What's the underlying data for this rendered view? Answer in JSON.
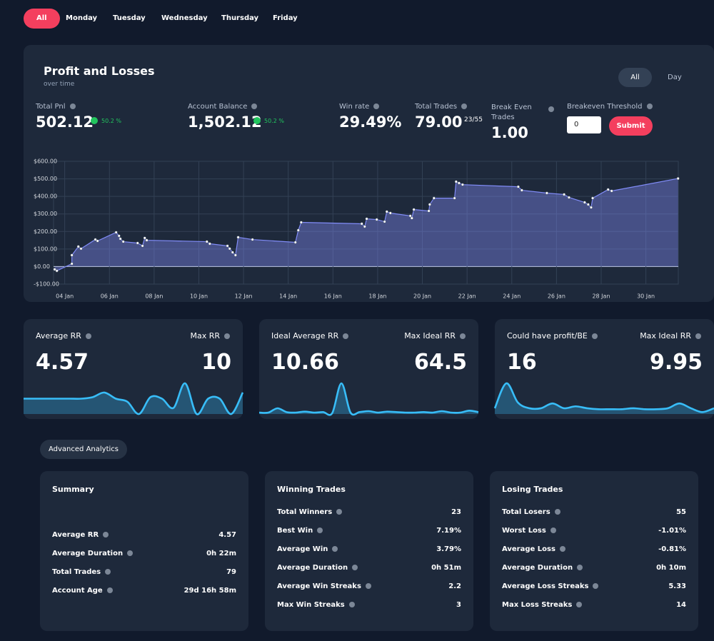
{
  "tabs": [
    "All",
    "Monday",
    "Tuesday",
    "Wednesday",
    "Thursday",
    "Friday"
  ],
  "panel": {
    "title": "Profit and Losses",
    "subtitle": "over time",
    "toggle": [
      "All",
      "Day"
    ],
    "stats": [
      {
        "label": "Total Pnl",
        "value": "502.12",
        "badge": "50.2 %"
      },
      {
        "label": "Account Balance",
        "value": "1,502.12",
        "badge": "50.2 %"
      },
      {
        "label": "Win rate",
        "value": "29.49%"
      },
      {
        "label": "Total Trades",
        "value": "79.00",
        "sub": "23/55"
      },
      {
        "label": "Break Even Trades",
        "value": "1.00"
      }
    ],
    "threshold": {
      "label": "Breakeven Threshold",
      "input": "0",
      "button": "Submit"
    }
  },
  "chart_data": {
    "type": "area",
    "x": [
      3.55,
      3.65,
      4.32,
      4.32,
      4.61,
      4.73,
      5.37,
      5.47,
      6.3,
      6.43,
      6.49,
      6.62,
      7.26,
      7.48,
      7.58,
      7.67,
      10.36,
      10.49,
      11.28,
      11.38,
      11.51,
      11.64,
      11.76,
      12.4,
      14.32,
      14.45,
      14.58,
      17.29,
      17.42,
      17.51,
      17.96,
      18.31,
      18.41,
      18.57,
      19.46,
      19.53,
      19.62,
      20.29,
      20.33,
      20.52,
      21.44,
      21.51,
      21.64,
      21.8,
      24.29,
      24.45,
      25.57,
      26.34,
      26.56,
      27.26,
      27.42,
      27.55,
      27.62,
      28.31,
      28.47,
      31.44
    ],
    "values": [
      -16,
      -24,
      16,
      65,
      114,
      102,
      154,
      146,
      195,
      175,
      158,
      142,
      134,
      118,
      163,
      150,
      142,
      130,
      118,
      102,
      81,
      65,
      167,
      154,
      138,
      207,
      252,
      244,
      228,
      272,
      268,
      256,
      313,
      305,
      289,
      276,
      325,
      317,
      354,
      390,
      390,
      484,
      476,
      467,
      455,
      435,
      419,
      411,
      394,
      366,
      354,
      337,
      390,
      439,
      431,
      502
    ],
    "color": "#818cf8",
    "xlim": [
      3.5,
      31.45
    ],
    "ylim": [
      -100,
      600
    ],
    "xticks": [
      {
        "value": 4,
        "label": "04 Jan"
      },
      {
        "value": 6,
        "label": "06 Jan"
      },
      {
        "value": 8,
        "label": "08 Jan"
      },
      {
        "value": 10,
        "label": "10 Jan"
      },
      {
        "value": 12,
        "label": "12 Jan"
      },
      {
        "value": 14,
        "label": "14 Jan"
      },
      {
        "value": 16,
        "label": "16 Jan"
      },
      {
        "value": 18,
        "label": "18 Jan"
      },
      {
        "value": 20,
        "label": "20 Jan"
      },
      {
        "value": 22,
        "label": "22 Jan"
      },
      {
        "value": 24,
        "label": "24 Jan"
      },
      {
        "value": 26,
        "label": "26 Jan"
      },
      {
        "value": 28,
        "label": "28 Jan"
      },
      {
        "value": 30,
        "label": "30 Jan"
      }
    ],
    "yticks": [
      {
        "value": 600,
        "label": "$600.00"
      },
      {
        "value": 500,
        "label": "$500.00"
      },
      {
        "value": 400,
        "label": "$400.00"
      },
      {
        "value": 300,
        "label": "$300.00"
      },
      {
        "value": 200,
        "label": "$200.00"
      },
      {
        "value": 100,
        "label": "$100.00"
      },
      {
        "value": 0,
        "label": "$0.00"
      },
      {
        "value": -100,
        "label": "-$100.00"
      }
    ],
    "grid": true
  },
  "cards": [
    {
      "left_label": "Average RR",
      "left_value": "4.57",
      "right_label": "Max RR",
      "right_value": "10",
      "color": "#38bdf8",
      "sparkline": [
        5,
        5,
        5,
        5,
        5,
        5,
        5.5,
        7,
        5,
        4,
        0,
        5.5,
        5,
        2,
        10,
        0,
        5,
        5,
        0,
        7
      ]
    },
    {
      "left_label": "Ideal Average RR",
      "left_value": "10.66",
      "right_label": "Max Ideal RR",
      "right_value": "64.5",
      "color": "#38bdf8",
      "sparkline": [
        3,
        3,
        12,
        4,
        3,
        5,
        3,
        4,
        2,
        64.5,
        3,
        4,
        6,
        3,
        5,
        4,
        3,
        3,
        4,
        3,
        6,
        3,
        3,
        7,
        4
      ]
    },
    {
      "left_label": "Could have profit/BE",
      "left_value": "16",
      "right_label": "Max Ideal RR",
      "right_value": "9.95",
      "color": "#38bdf8",
      "sparkline": [
        3,
        16,
        6,
        3,
        3,
        5.5,
        3,
        4,
        3,
        2.5,
        2.5,
        2.5,
        3,
        2.5,
        2.5,
        3,
        5.5,
        3,
        1,
        3
      ]
    }
  ],
  "advanced": "Advanced Analytics",
  "tables": [
    {
      "title": "Summary",
      "rows": [
        [
          "Average RR",
          "4.57"
        ],
        [
          "Average Duration",
          "0h 22m"
        ],
        [
          "Total Trades",
          "79"
        ],
        [
          "Account Age",
          "29d 16h 58m"
        ]
      ]
    },
    {
      "title": "Winning Trades",
      "rows": [
        [
          "Total Winners",
          "23"
        ],
        [
          "Best Win",
          "7.19%"
        ],
        [
          "Average Win",
          "3.79%"
        ],
        [
          "Average Duration",
          "0h 51m"
        ],
        [
          "Average Win Streaks",
          "2.2"
        ],
        [
          "Max Win Streaks",
          "3"
        ]
      ]
    },
    {
      "title": "Losing Trades",
      "rows": [
        [
          "Total Losers",
          "55"
        ],
        [
          "Worst Loss",
          "-1.01%"
        ],
        [
          "Average Loss",
          "-0.81%"
        ],
        [
          "Average Duration",
          "0h 10m"
        ],
        [
          "Average Loss Streaks",
          "5.33"
        ],
        [
          "Max Loss Streaks",
          "14"
        ]
      ]
    }
  ]
}
